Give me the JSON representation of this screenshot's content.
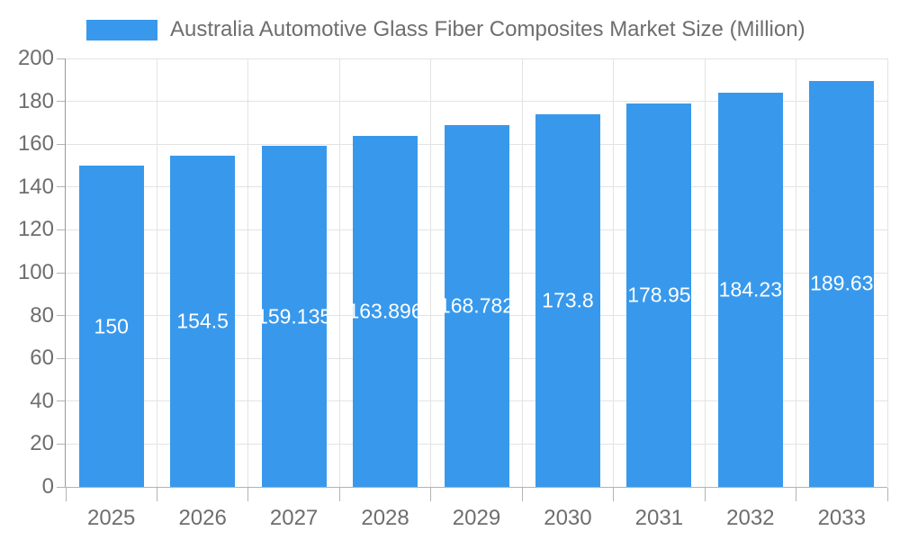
{
  "chart_data": {
    "type": "bar",
    "title": "Australia Automotive Glass Fiber Composites Market Size (Million)",
    "legend_position": "top",
    "grid": true,
    "categories": [
      "2025",
      "2026",
      "2027",
      "2028",
      "2029",
      "2030",
      "2031",
      "2032",
      "2033"
    ],
    "series": [
      {
        "name": "Australia Automotive Glass Fiber Composites Market Size (Million)",
        "values": [
          150,
          154.5,
          159.135,
          163.896,
          168.782,
          173.8,
          178.95,
          184.23,
          189.63
        ],
        "value_labels": [
          "150",
          "154.5",
          "159.135",
          "163.896",
          "168.782",
          "173.8",
          "178.95",
          "184.23",
          "189.63"
        ]
      }
    ],
    "xlabel": "",
    "ylabel": "",
    "ylim": [
      0,
      200
    ],
    "ytick_step": 20,
    "ytick_labels": [
      "0",
      "20",
      "40",
      "60",
      "80",
      "100",
      "120",
      "140",
      "160",
      "180",
      "200"
    ],
    "colors": {
      "bar": "#3899EC",
      "value_label": "#FFFFFF",
      "axis_text": "#6E6E6E",
      "gridline": "#E3E3E3",
      "axis_line": "#B3B3B3",
      "y_axis_line": "#9A9A9A",
      "background": "#FFFFFF"
    }
  }
}
